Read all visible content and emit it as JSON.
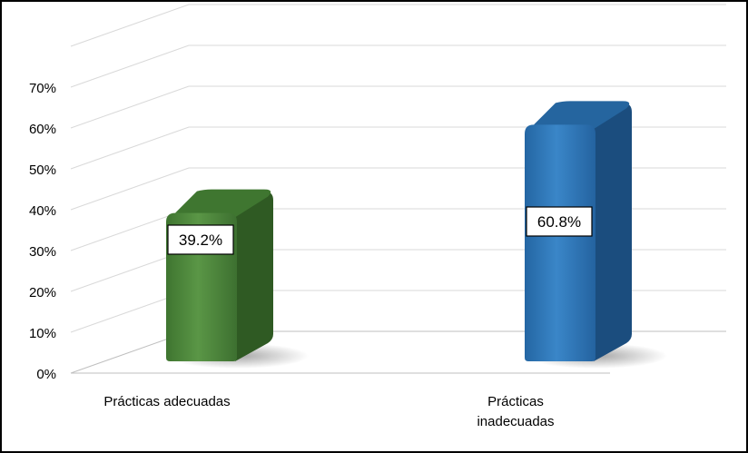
{
  "chart_data": {
    "type": "bar",
    "title": "",
    "xlabel": "",
    "ylabel": "",
    "categories": [
      "Prácticas adecuadas",
      "Prácticas inadecuadas"
    ],
    "category_lines": [
      [
        "Prácticas adecuadas"
      ],
      [
        "Prácticas",
        "inadecuadas"
      ]
    ],
    "values": [
      39.2,
      60.8
    ],
    "value_labels": [
      "39.2%",
      "60.8%"
    ],
    "ylim": [
      0,
      70
    ],
    "yticks": [
      0,
      10,
      20,
      30,
      40,
      50,
      60,
      70
    ],
    "ytick_labels": [
      "0%",
      "10%",
      "20%",
      "30%",
      "40%",
      "50%",
      "60%",
      "70%"
    ],
    "grid": true,
    "legend": "none",
    "style": "3d-column",
    "colors": {
      "bars": [
        "#4f8a3c",
        "#2c74b5"
      ],
      "bar_sides": [
        "#2f5a23",
        "#1b4d7e"
      ],
      "bar_tops": [
        "#3f7630",
        "#25659f"
      ],
      "gridline": "#d9d9d9",
      "axis_text": "#000000"
    }
  }
}
